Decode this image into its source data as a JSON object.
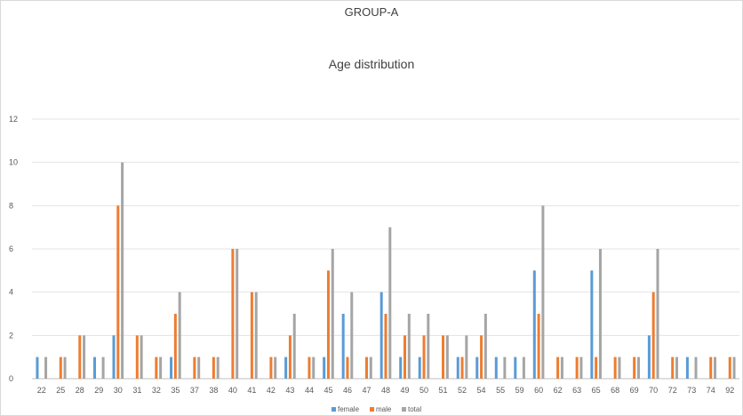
{
  "chart_data": {
    "type": "bar",
    "title": "GROUP-A",
    "subtitle": "Age distribution",
    "categories": [
      "22",
      "25",
      "28",
      "29",
      "30",
      "31",
      "32",
      "35",
      "37",
      "38",
      "40",
      "41",
      "42",
      "43",
      "44",
      "45",
      "46",
      "47",
      "48",
      "49",
      "50",
      "51",
      "52",
      "54",
      "55",
      "59",
      "60",
      "62",
      "63",
      "65",
      "68",
      "69",
      "70",
      "72",
      "73",
      "74",
      "92"
    ],
    "series": [
      {
        "name": "female",
        "color": "#5b9bd5",
        "values": [
          1,
          0,
          0,
          1,
          2,
          0,
          0,
          1,
          0,
          0,
          0,
          0,
          0,
          1,
          0,
          1,
          3,
          0,
          4,
          1,
          1,
          0,
          1,
          1,
          1,
          1,
          5,
          0,
          0,
          5,
          0,
          0,
          2,
          0,
          1,
          0,
          0
        ]
      },
      {
        "name": "male",
        "color": "#ed7d31",
        "values": [
          0,
          1,
          2,
          0,
          8,
          2,
          1,
          3,
          1,
          1,
          6,
          4,
          1,
          2,
          1,
          5,
          1,
          1,
          3,
          2,
          2,
          2,
          1,
          2,
          0,
          0,
          3,
          1,
          1,
          1,
          1,
          1,
          4,
          1,
          0,
          1,
          1
        ]
      },
      {
        "name": "total",
        "color": "#a5a5a5",
        "values": [
          1,
          1,
          2,
          1,
          10,
          2,
          1,
          4,
          1,
          1,
          6,
          4,
          1,
          3,
          1,
          6,
          4,
          1,
          7,
          3,
          3,
          2,
          2,
          3,
          1,
          1,
          8,
          1,
          1,
          6,
          1,
          1,
          6,
          1,
          1,
          1,
          1
        ]
      }
    ],
    "ylim": [
      0,
      12
    ],
    "yticks": [
      0,
      2,
      4,
      6,
      8,
      10,
      12
    ],
    "grid": true,
    "legend": "bottom"
  }
}
